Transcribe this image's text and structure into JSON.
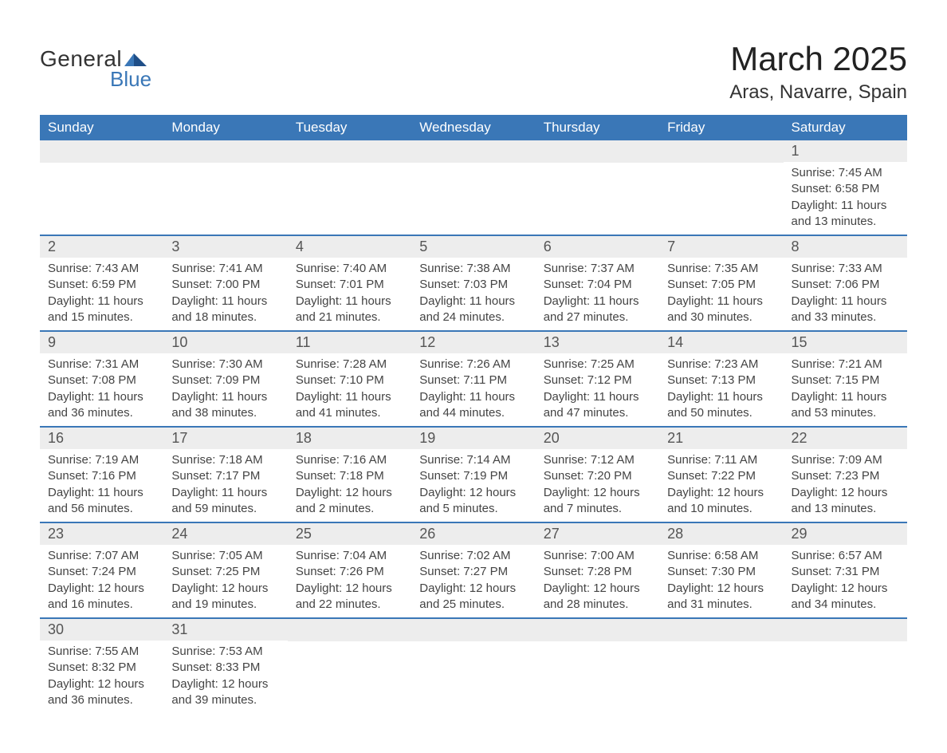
{
  "brand": {
    "word1": "General",
    "word2": "Blue",
    "text_color": "#333333",
    "accent_color": "#3a77b7"
  },
  "title": {
    "month": "March 2025",
    "location": "Aras, Navarre, Spain",
    "month_fontsize": 42,
    "location_fontsize": 24
  },
  "calendar": {
    "header_bg": "#3a77b7",
    "header_fg": "#ffffff",
    "row_border_color": "#3a77b7",
    "daynum_bg": "#ededed",
    "daynum_fg": "#555555",
    "text_color": "#444444",
    "body_fontsize": 15,
    "daynum_fontsize": 18,
    "columns": [
      "Sunday",
      "Monday",
      "Tuesday",
      "Wednesday",
      "Thursday",
      "Friday",
      "Saturday"
    ],
    "weeks": [
      [
        {
          "day": "",
          "lines": []
        },
        {
          "day": "",
          "lines": []
        },
        {
          "day": "",
          "lines": []
        },
        {
          "day": "",
          "lines": []
        },
        {
          "day": "",
          "lines": []
        },
        {
          "day": "",
          "lines": []
        },
        {
          "day": "1",
          "lines": [
            "Sunrise: 7:45 AM",
            "Sunset: 6:58 PM",
            "Daylight: 11 hours and 13 minutes."
          ]
        }
      ],
      [
        {
          "day": "2",
          "lines": [
            "Sunrise: 7:43 AM",
            "Sunset: 6:59 PM",
            "Daylight: 11 hours and 15 minutes."
          ]
        },
        {
          "day": "3",
          "lines": [
            "Sunrise: 7:41 AM",
            "Sunset: 7:00 PM",
            "Daylight: 11 hours and 18 minutes."
          ]
        },
        {
          "day": "4",
          "lines": [
            "Sunrise: 7:40 AM",
            "Sunset: 7:01 PM",
            "Daylight: 11 hours and 21 minutes."
          ]
        },
        {
          "day": "5",
          "lines": [
            "Sunrise: 7:38 AM",
            "Sunset: 7:03 PM",
            "Daylight: 11 hours and 24 minutes."
          ]
        },
        {
          "day": "6",
          "lines": [
            "Sunrise: 7:37 AM",
            "Sunset: 7:04 PM",
            "Daylight: 11 hours and 27 minutes."
          ]
        },
        {
          "day": "7",
          "lines": [
            "Sunrise: 7:35 AM",
            "Sunset: 7:05 PM",
            "Daylight: 11 hours and 30 minutes."
          ]
        },
        {
          "day": "8",
          "lines": [
            "Sunrise: 7:33 AM",
            "Sunset: 7:06 PM",
            "Daylight: 11 hours and 33 minutes."
          ]
        }
      ],
      [
        {
          "day": "9",
          "lines": [
            "Sunrise: 7:31 AM",
            "Sunset: 7:08 PM",
            "Daylight: 11 hours and 36 minutes."
          ]
        },
        {
          "day": "10",
          "lines": [
            "Sunrise: 7:30 AM",
            "Sunset: 7:09 PM",
            "Daylight: 11 hours and 38 minutes."
          ]
        },
        {
          "day": "11",
          "lines": [
            "Sunrise: 7:28 AM",
            "Sunset: 7:10 PM",
            "Daylight: 11 hours and 41 minutes."
          ]
        },
        {
          "day": "12",
          "lines": [
            "Sunrise: 7:26 AM",
            "Sunset: 7:11 PM",
            "Daylight: 11 hours and 44 minutes."
          ]
        },
        {
          "day": "13",
          "lines": [
            "Sunrise: 7:25 AM",
            "Sunset: 7:12 PM",
            "Daylight: 11 hours and 47 minutes."
          ]
        },
        {
          "day": "14",
          "lines": [
            "Sunrise: 7:23 AM",
            "Sunset: 7:13 PM",
            "Daylight: 11 hours and 50 minutes."
          ]
        },
        {
          "day": "15",
          "lines": [
            "Sunrise: 7:21 AM",
            "Sunset: 7:15 PM",
            "Daylight: 11 hours and 53 minutes."
          ]
        }
      ],
      [
        {
          "day": "16",
          "lines": [
            "Sunrise: 7:19 AM",
            "Sunset: 7:16 PM",
            "Daylight: 11 hours and 56 minutes."
          ]
        },
        {
          "day": "17",
          "lines": [
            "Sunrise: 7:18 AM",
            "Sunset: 7:17 PM",
            "Daylight: 11 hours and 59 minutes."
          ]
        },
        {
          "day": "18",
          "lines": [
            "Sunrise: 7:16 AM",
            "Sunset: 7:18 PM",
            "Daylight: 12 hours and 2 minutes."
          ]
        },
        {
          "day": "19",
          "lines": [
            "Sunrise: 7:14 AM",
            "Sunset: 7:19 PM",
            "Daylight: 12 hours and 5 minutes."
          ]
        },
        {
          "day": "20",
          "lines": [
            "Sunrise: 7:12 AM",
            "Sunset: 7:20 PM",
            "Daylight: 12 hours and 7 minutes."
          ]
        },
        {
          "day": "21",
          "lines": [
            "Sunrise: 7:11 AM",
            "Sunset: 7:22 PM",
            "Daylight: 12 hours and 10 minutes."
          ]
        },
        {
          "day": "22",
          "lines": [
            "Sunrise: 7:09 AM",
            "Sunset: 7:23 PM",
            "Daylight: 12 hours and 13 minutes."
          ]
        }
      ],
      [
        {
          "day": "23",
          "lines": [
            "Sunrise: 7:07 AM",
            "Sunset: 7:24 PM",
            "Daylight: 12 hours and 16 minutes."
          ]
        },
        {
          "day": "24",
          "lines": [
            "Sunrise: 7:05 AM",
            "Sunset: 7:25 PM",
            "Daylight: 12 hours and 19 minutes."
          ]
        },
        {
          "day": "25",
          "lines": [
            "Sunrise: 7:04 AM",
            "Sunset: 7:26 PM",
            "Daylight: 12 hours and 22 minutes."
          ]
        },
        {
          "day": "26",
          "lines": [
            "Sunrise: 7:02 AM",
            "Sunset: 7:27 PM",
            "Daylight: 12 hours and 25 minutes."
          ]
        },
        {
          "day": "27",
          "lines": [
            "Sunrise: 7:00 AM",
            "Sunset: 7:28 PM",
            "Daylight: 12 hours and 28 minutes."
          ]
        },
        {
          "day": "28",
          "lines": [
            "Sunrise: 6:58 AM",
            "Sunset: 7:30 PM",
            "Daylight: 12 hours and 31 minutes."
          ]
        },
        {
          "day": "29",
          "lines": [
            "Sunrise: 6:57 AM",
            "Sunset: 7:31 PM",
            "Daylight: 12 hours and 34 minutes."
          ]
        }
      ],
      [
        {
          "day": "30",
          "lines": [
            "Sunrise: 7:55 AM",
            "Sunset: 8:32 PM",
            "Daylight: 12 hours and 36 minutes."
          ]
        },
        {
          "day": "31",
          "lines": [
            "Sunrise: 7:53 AM",
            "Sunset: 8:33 PM",
            "Daylight: 12 hours and 39 minutes."
          ]
        },
        {
          "day": "",
          "lines": []
        },
        {
          "day": "",
          "lines": []
        },
        {
          "day": "",
          "lines": []
        },
        {
          "day": "",
          "lines": []
        },
        {
          "day": "",
          "lines": []
        }
      ]
    ]
  }
}
